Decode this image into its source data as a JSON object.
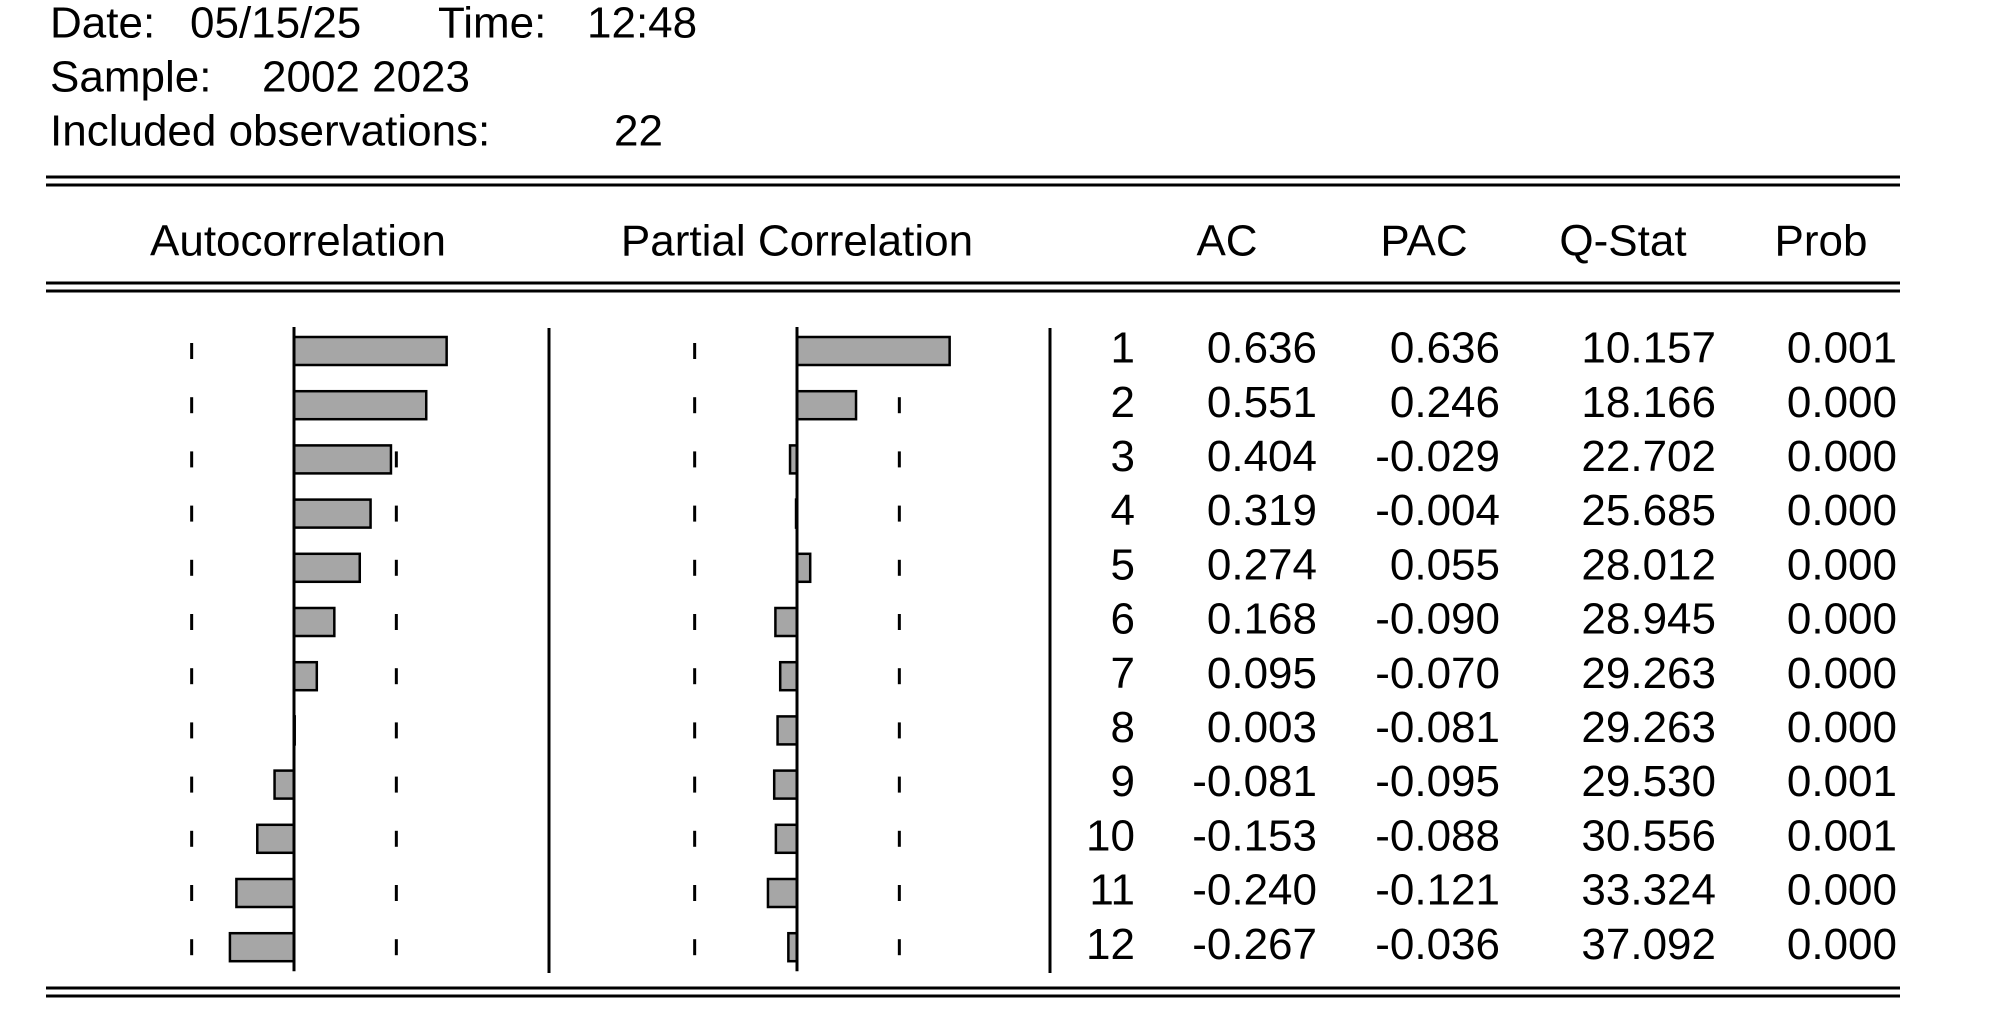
{
  "header": {
    "date_label": "Date:",
    "date": "05/15/25",
    "time_label": "Time:",
    "time": "12:48",
    "sample_label": "Sample:",
    "sample": "2002 2023",
    "obs_label": "Included observations:",
    "obs": "22"
  },
  "table": {
    "columns": [
      "Autocorrelation",
      "Partial Correlation",
      "AC",
      "PAC",
      "Q-Stat",
      "Prob"
    ],
    "rows": [
      [
        "1",
        "0.636",
        "0.636",
        "10.157",
        "0.001"
      ],
      [
        "2",
        "0.551",
        "0.246",
        "18.166",
        "0.000"
      ],
      [
        "3",
        "0.404",
        "-0.029",
        "22.702",
        "0.000"
      ],
      [
        "4",
        "0.319",
        "-0.004",
        "25.685",
        "0.000"
      ],
      [
        "5",
        "0.274",
        "0.055",
        "28.012",
        "0.000"
      ],
      [
        "6",
        "0.168",
        "-0.090",
        "28.945",
        "0.000"
      ],
      [
        "7",
        "0.095",
        "-0.070",
        "29.263",
        "0.000"
      ],
      [
        "8",
        "0.003",
        "-0.081",
        "29.263",
        "0.000"
      ],
      [
        "9",
        "-0.081",
        "-0.095",
        "29.530",
        "0.001"
      ],
      [
        "10",
        "-0.153",
        "-0.088",
        "30.556",
        "0.001"
      ],
      [
        "11",
        "-0.240",
        "-0.121",
        "33.324",
        "0.000"
      ],
      [
        "12",
        "-0.267",
        "-0.036",
        "37.092",
        "0.000"
      ]
    ]
  }
}
